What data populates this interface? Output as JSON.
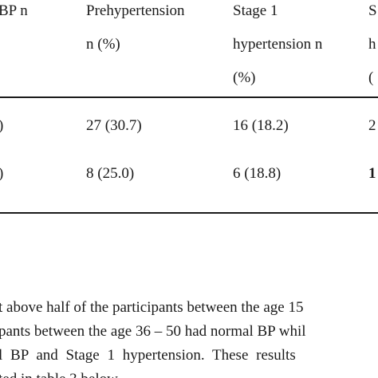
{
  "table": {
    "headers": {
      "col1": [
        "BP n"
      ],
      "col2": [
        "Prehypertension",
        "n (%)"
      ],
      "col3": [
        "Stage 1",
        "hypertension n",
        "(%)"
      ],
      "col4": [
        "S",
        "h",
        "("
      ]
    },
    "rows": [
      {
        "col1": ")",
        "col2": "27 (30.7)",
        "col3": "16 (18.2)",
        "col4": "2"
      },
      {
        "col1": ")",
        "col2": "8 (25.0)",
        "col3": "6 (18.8)",
        "col4": "1"
      }
    ]
  },
  "paragraph": [
    "t above half of the participants between the age 15",
    "pants between the age 36 – 50 had normal BP whil",
    "l BP and Stage 1 hypertension. These results",
    "ted in table 3 below."
  ]
}
